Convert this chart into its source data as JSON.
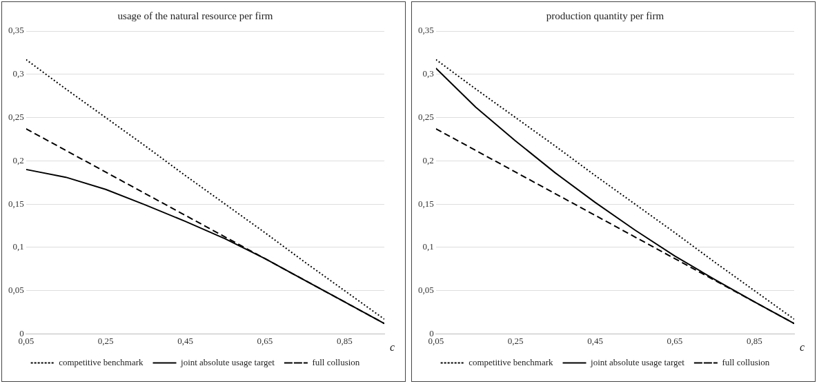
{
  "chart_data": [
    {
      "type": "line",
      "title": "usage of the natural resource per firm",
      "xlabel": "c",
      "x": [
        0.05,
        0.15,
        0.25,
        0.35,
        0.45,
        0.55,
        0.65,
        0.75,
        0.85,
        0.95
      ],
      "series": [
        {
          "name": "competitive benchmark",
          "color": "#000000",
          "line_style": "dotted",
          "values": [
            0.317,
            0.283,
            0.25,
            0.217,
            0.183,
            0.15,
            0.117,
            0.083,
            0.05,
            0.017
          ]
        },
        {
          "name": "joint absolute usage target",
          "color": "#000000",
          "line_style": "solid",
          "values": [
            0.19,
            0.181,
            0.167,
            0.149,
            0.13,
            0.11,
            0.087,
            0.062,
            0.037,
            0.012
          ]
        },
        {
          "name": "full collusion",
          "color": "#000000",
          "line_style": "dashed",
          "values": [
            0.237,
            0.212,
            0.187,
            0.162,
            0.137,
            0.112,
            0.087,
            0.062,
            0.037,
            0.012
          ]
        }
      ],
      "xlim": [
        0.05,
        0.95
      ],
      "xticks": [
        {
          "value": 0.05,
          "label": "0,05"
        },
        {
          "value": 0.25,
          "label": "0,25"
        },
        {
          "value": 0.45,
          "label": "0,45"
        },
        {
          "value": 0.65,
          "label": "0,65"
        },
        {
          "value": 0.85,
          "label": "0,85"
        }
      ],
      "ylim": [
        0,
        0.35
      ],
      "yticks": [
        0,
        {
          "value": 0.05,
          "label": "0,05"
        },
        {
          "value": 0.1,
          "label": "0,1"
        },
        {
          "value": 0.15,
          "label": "0,15"
        },
        {
          "value": 0.2,
          "label": "0,2"
        },
        {
          "value": 0.25,
          "label": "0,25"
        },
        {
          "value": 0.3,
          "label": "0,3"
        },
        {
          "value": 0.35,
          "label": "0,35"
        }
      ],
      "grid": "y",
      "legend": "bottom",
      "marker": "none"
    },
    {
      "type": "line",
      "title": "production quantity per firm",
      "xlabel": "c",
      "x": [
        0.05,
        0.15,
        0.25,
        0.35,
        0.45,
        0.55,
        0.65,
        0.75,
        0.85,
        0.95
      ],
      "series": [
        {
          "name": "competitive benchmark",
          "color": "#000000",
          "line_style": "dotted",
          "values": [
            0.317,
            0.283,
            0.25,
            0.217,
            0.183,
            0.15,
            0.117,
            0.083,
            0.05,
            0.017
          ]
        },
        {
          "name": "joint absolute usage target",
          "color": "#000000",
          "line_style": "solid",
          "values": [
            0.307,
            0.262,
            0.223,
            0.186,
            0.152,
            0.12,
            0.09,
            0.063,
            0.037,
            0.012
          ]
        },
        {
          "name": "full collusion",
          "color": "#000000",
          "line_style": "dashed",
          "values": [
            0.237,
            0.212,
            0.187,
            0.162,
            0.137,
            0.112,
            0.087,
            0.062,
            0.037,
            0.012
          ]
        }
      ],
      "xlim": [
        0.05,
        0.95
      ],
      "xticks": [
        {
          "value": 0.05,
          "label": "0,05"
        },
        {
          "value": 0.25,
          "label": "0,25"
        },
        {
          "value": 0.45,
          "label": "0,45"
        },
        {
          "value": 0.65,
          "label": "0,65"
        },
        {
          "value": 0.85,
          "label": "0,85"
        }
      ],
      "ylim": [
        0,
        0.35
      ],
      "yticks": [
        0,
        {
          "value": 0.05,
          "label": "0,05"
        },
        {
          "value": 0.1,
          "label": "0,1"
        },
        {
          "value": 0.15,
          "label": "0,15"
        },
        {
          "value": 0.2,
          "label": "0,2"
        },
        {
          "value": 0.25,
          "label": "0,25"
        },
        {
          "value": 0.3,
          "label": "0,3"
        },
        {
          "value": 0.35,
          "label": "0,35"
        }
      ],
      "grid": "y",
      "legend": "bottom",
      "marker": "none"
    }
  ]
}
